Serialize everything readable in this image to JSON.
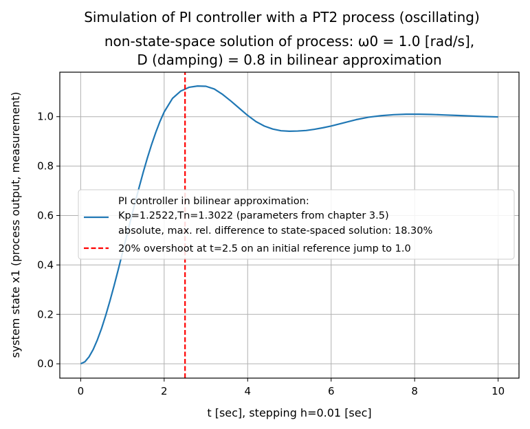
{
  "chart_data": {
    "type": "line",
    "title_lines": [
      "Simulation of PI controller with a PT2 process (oscillating)",
      "non-state-space solution of process: ω0 = 1.0 [rad/s],",
      "D (damping) = 0.8 in bilinear approximation"
    ],
    "xlabel": "t [sec], stepping h=0.01 [sec]",
    "ylabel": "system state x1 (process output, measurement)",
    "xlim": [
      -0.5,
      10.5
    ],
    "ylim": [
      -0.058,
      1.18
    ],
    "xticks": [
      0,
      2,
      4,
      6,
      8,
      10
    ],
    "yticks": [
      0.0,
      0.2,
      0.4,
      0.6,
      0.8,
      1.0
    ],
    "xtick_labels": [
      "0",
      "2",
      "4",
      "6",
      "8",
      "10"
    ],
    "ytick_labels": [
      "0.0",
      "0.2",
      "0.4",
      "0.6",
      "0.8",
      "1.0"
    ],
    "grid": true,
    "legend_position": "center-right",
    "series": [
      {
        "name_lines": [
          "PI controller in bilinear approximation:",
          "Kp=1.2522,Tn=1.3022 (parameters from chapter 3.5)",
          "absolute, max. rel. difference to state-spaced solution: 18.30%"
        ],
        "color": "#1f77b4",
        "style": "solid",
        "x": [
          0.0,
          0.1,
          0.2,
          0.3,
          0.4,
          0.5,
          0.6,
          0.7,
          0.8,
          0.9,
          1.0,
          1.1,
          1.2,
          1.3,
          1.4,
          1.5,
          1.6,
          1.7,
          1.8,
          1.9,
          2.0,
          2.2,
          2.4,
          2.6,
          2.8,
          3.0,
          3.2,
          3.4,
          3.6,
          3.8,
          4.0,
          4.2,
          4.4,
          4.6,
          4.8,
          5.0,
          5.2,
          5.4,
          5.6,
          5.8,
          6.0,
          6.3,
          6.6,
          6.9,
          7.2,
          7.5,
          7.8,
          8.1,
          8.4,
          8.7,
          9.0,
          9.3,
          9.6,
          10.0
        ],
        "y": [
          0.0,
          0.008,
          0.028,
          0.058,
          0.097,
          0.143,
          0.196,
          0.254,
          0.316,
          0.381,
          0.448,
          0.516,
          0.584,
          0.65,
          0.714,
          0.776,
          0.834,
          0.888,
          0.937,
          0.981,
          1.019,
          1.074,
          1.104,
          1.119,
          1.124,
          1.123,
          1.112,
          1.09,
          1.063,
          1.034,
          1.005,
          0.98,
          0.962,
          0.95,
          0.943,
          0.941,
          0.942,
          0.944,
          0.949,
          0.955,
          0.962,
          0.975,
          0.988,
          0.998,
          1.004,
          1.008,
          1.01,
          1.01,
          1.009,
          1.007,
          1.005,
          1.003,
          1.001,
          0.999
        ]
      },
      {
        "name_lines": [
          "20% overshoot at t=2.5 on an initial reference jump to 1.0"
        ],
        "color": "#ff0000",
        "style": "dashed",
        "x": [
          2.5,
          2.5
        ],
        "y": [
          -0.058,
          1.18
        ]
      }
    ]
  }
}
